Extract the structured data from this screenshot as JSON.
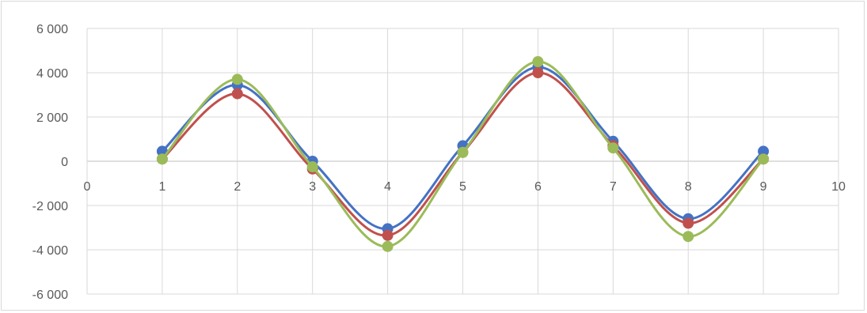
{
  "chart_data": {
    "type": "scatter",
    "title": "",
    "xlabel": "",
    "ylabel": "",
    "xlim": [
      0,
      10
    ],
    "ylim": [
      -6000,
      6000
    ],
    "x_ticks": [
      0,
      1,
      2,
      3,
      4,
      5,
      6,
      7,
      8,
      9,
      10
    ],
    "y_ticks": [
      6000,
      4000,
      2000,
      0,
      -2000,
      -4000,
      -6000
    ],
    "x_tick_labels": [
      "0",
      "1",
      "2",
      "3",
      "4",
      "5",
      "6",
      "7",
      "8",
      "9",
      "10"
    ],
    "y_tick_labels": [
      "6 000",
      "4 000",
      "2 000",
      "0",
      "-2 000",
      "-4 000",
      "-6 000"
    ],
    "grid": true,
    "legend": "none",
    "line_style": "smooth",
    "x": [
      1,
      2,
      3,
      4,
      5,
      6,
      7,
      8,
      9
    ],
    "series": [
      {
        "color": "#4472c4",
        "values": [
          450,
          3450,
          0,
          -3050,
          700,
          4250,
          900,
          -2600,
          450
        ]
      },
      {
        "color": "#c0504d",
        "values": [
          100,
          3050,
          -350,
          -3350,
          400,
          4000,
          700,
          -2800,
          100
        ]
      },
      {
        "color": "#9bbb59",
        "values": [
          100,
          3700,
          -250,
          -3850,
          400,
          4500,
          600,
          -3400,
          100
        ]
      }
    ]
  }
}
